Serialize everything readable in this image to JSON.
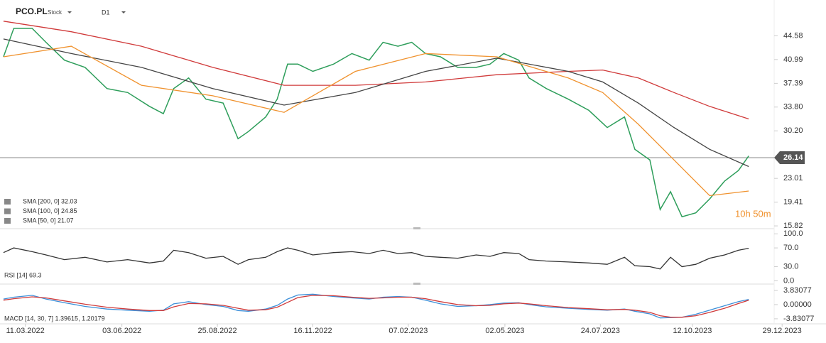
{
  "chart_data": [
    {
      "type": "line",
      "title": "PCO.PL",
      "subtitle": "Stock",
      "timeframe": "D1",
      "countdown": "10h 50m",
      "current_price": 26.14,
      "xlim": [
        "17.02.2022",
        "19.12.2023"
      ],
      "ylim": [
        15.4,
        50.0
      ],
      "yticks": [
        44.58,
        40.99,
        37.39,
        {
          "value": 33.8,
          "label": "33.80"
        },
        {
          "value": 30.2,
          "label": "30.20"
        },
        23.01,
        19.41,
        15.82
      ],
      "series": [
        {
          "color": "#2e9e5b",
          "x": [
            "20.02.2022",
            "01.03.2022",
            "17.03.2022",
            "29.03.2022",
            "14.04.2022",
            "02.05.2022",
            "21.05.2022",
            "08.06.2022",
            "27.06.2022",
            "09.07.2022",
            "18.07.2022",
            "31.07.2022",
            "15.08.2022",
            "30.08.2022",
            "12.09.2022",
            "21.09.2022",
            "06.10.2022",
            "16.10.2022",
            "25.10.2022",
            "03.11.2022",
            "16.11.2022",
            "04.12.2022",
            "20.12.2022",
            "04.01.2023",
            "16.01.2023",
            "29.01.2023",
            "10.02.2023",
            "22.02.2023",
            "07.03.2023",
            "22.03.2023",
            "07.04.2023",
            "19.04.2023",
            "01.05.2023",
            "14.05.2023",
            "23.05.2023",
            "07.06.2023",
            "26.06.2023",
            "14.07.2023",
            "30.07.2023",
            "14.08.2023",
            "23.08.2023",
            "05.09.2023",
            "14.09.2023",
            "23.09.2023",
            "03.10.2023",
            "15.10.2023",
            "27.10.2023",
            "09.11.2023",
            "21.11.2023",
            "30.11.2023"
          ],
          "values": [
            41.4,
            45.7,
            45.7,
            43.6,
            40.9,
            39.8,
            36.6,
            36.0,
            33.9,
            32.8,
            36.6,
            38.2,
            35.0,
            34.4,
            29.0,
            30.1,
            32.3,
            35.0,
            40.3,
            40.3,
            39.2,
            40.3,
            41.9,
            40.9,
            43.6,
            43.0,
            43.6,
            41.9,
            41.4,
            39.8,
            39.8,
            40.3,
            41.9,
            40.9,
            38.2,
            36.6,
            35.0,
            33.3,
            30.7,
            32.3,
            27.4,
            25.8,
            18.3,
            21.0,
            17.2,
            17.8,
            19.9,
            22.6,
            24.2,
            26.4
          ]
        },
        {
          "name": "SMA [200, 0] 32.03",
          "color": "#d03a3a",
          "x": [
            "20.02.2022",
            "20.04.2022",
            "20.06.2022",
            "21.08.2022",
            "22.10.2022",
            "23.12.2022",
            "22.02.2023",
            "25.04.2023",
            "26.06.2023",
            "26.07.2023",
            "26.08.2023",
            "26.09.2023",
            "27.10.2023",
            "30.11.2023"
          ],
          "values": [
            46.8,
            45.2,
            43.0,
            39.8,
            37.1,
            37.1,
            37.6,
            38.7,
            39.2,
            39.4,
            38.2,
            36.0,
            33.9,
            32.0
          ]
        },
        {
          "name": "SMA [100, 0] 24.85",
          "color": "#444444",
          "x": [
            "20.02.2022",
            "20.04.2022",
            "20.06.2022",
            "21.08.2022",
            "22.10.2022",
            "23.12.2022",
            "22.02.2023",
            "25.04.2023",
            "26.06.2023",
            "26.07.2023",
            "26.08.2023",
            "26.09.2023",
            "27.10.2023",
            "30.11.2023"
          ],
          "values": [
            44.1,
            41.9,
            39.8,
            36.6,
            34.1,
            36.0,
            39.2,
            41.2,
            39.2,
            37.6,
            34.4,
            30.7,
            27.4,
            24.8
          ]
        },
        {
          "name": "SMA [50, 0] 21.07",
          "color": "#f0922e",
          "x": [
            "20.02.2022",
            "20.04.2022",
            "20.06.2022",
            "21.08.2022",
            "22.10.2022",
            "23.12.2022",
            "22.02.2023",
            "25.04.2023",
            "26.06.2023",
            "26.07.2023",
            "26.08.2023",
            "26.09.2023",
            "27.10.2023",
            "30.11.2023"
          ],
          "values": [
            41.4,
            43.0,
            37.1,
            35.5,
            33.0,
            39.2,
            41.9,
            41.4,
            38.2,
            36.0,
            31.2,
            25.8,
            20.4,
            21.1
          ]
        }
      ]
    },
    {
      "type": "line",
      "title": "RSI [14] 69.3",
      "xlim": [
        "17.02.2022",
        "19.12.2023"
      ],
      "ylim": [
        -7,
        111
      ],
      "yticks": [
        {
          "value": 100,
          "label": "100.0"
        },
        {
          "value": 70,
          "label": "70.0"
        },
        {
          "value": 30,
          "label": "30.0"
        },
        {
          "value": 0,
          "label": "0.0"
        }
      ],
      "series": [
        {
          "color": "#333333",
          "x": [
            "20.02.2022",
            "01.03.2022",
            "17.03.2022",
            "29.03.2022",
            "14.04.2022",
            "02.05.2022",
            "21.05.2022",
            "08.06.2022",
            "27.06.2022",
            "09.07.2022",
            "18.07.2022",
            "31.07.2022",
            "15.08.2022",
            "30.08.2022",
            "12.09.2022",
            "21.09.2022",
            "06.10.2022",
            "16.10.2022",
            "25.10.2022",
            "03.11.2022",
            "16.11.2022",
            "04.12.2022",
            "20.12.2022",
            "04.01.2023",
            "16.01.2023",
            "29.01.2023",
            "10.02.2023",
            "22.02.2023",
            "07.03.2023",
            "22.03.2023",
            "07.04.2023",
            "19.04.2023",
            "01.05.2023",
            "14.05.2023",
            "23.05.2023",
            "07.06.2023",
            "26.06.2023",
            "14.07.2023",
            "30.07.2023",
            "14.08.2023",
            "23.08.2023",
            "05.09.2023",
            "14.09.2023",
            "23.09.2023",
            "03.10.2023",
            "15.10.2023",
            "27.10.2023",
            "09.11.2023",
            "21.11.2023",
            "30.11.2023"
          ],
          "values": [
            60,
            70,
            62,
            55,
            45,
            50,
            40,
            45,
            38,
            42,
            65,
            60,
            48,
            52,
            35,
            45,
            50,
            62,
            70,
            65,
            55,
            60,
            62,
            58,
            65,
            58,
            60,
            52,
            50,
            48,
            55,
            52,
            60,
            58,
            45,
            42,
            40,
            38,
            35,
            50,
            32,
            30,
            25,
            50,
            30,
            35,
            48,
            55,
            65,
            69.3
          ]
        }
      ]
    },
    {
      "type": "line",
      "title": "MACD [14, 30, 7] 1.39615, 1.20179",
      "xlim": [
        "17.02.2022",
        "19.12.2023"
      ],
      "ylim": [
        -5.0,
        5.55
      ],
      "yticks": [
        {
          "value": 3.83077,
          "label": "3.83077"
        },
        {
          "value": 0,
          "label": "0.00000"
        },
        {
          "value": -3.83077,
          "label": "-3.83077"
        }
      ],
      "xticks": [
        "11.03.2022",
        "03.06.2022",
        "25.08.2022",
        "16.11.2022",
        "07.02.2023",
        "02.05.2023",
        "24.07.2023",
        "12.10.2023",
        "29.12.2023"
      ],
      "series": [
        {
          "color": "#3b8fd9",
          "x": [
            "20.02.2022",
            "01.03.2022",
            "17.03.2022",
            "29.03.2022",
            "14.04.2022",
            "02.05.2022",
            "21.05.2022",
            "08.06.2022",
            "27.06.2022",
            "09.07.2022",
            "18.07.2022",
            "31.07.2022",
            "15.08.2022",
            "30.08.2022",
            "12.09.2022",
            "21.09.2022",
            "06.10.2022",
            "16.10.2022",
            "25.10.2022",
            "03.11.2022",
            "16.11.2022",
            "04.12.2022",
            "20.12.2022",
            "04.01.2023",
            "16.01.2023",
            "29.01.2023",
            "10.02.2023",
            "22.02.2023",
            "07.03.2023",
            "22.03.2023",
            "07.04.2023",
            "19.04.2023",
            "01.05.2023",
            "14.05.2023",
            "23.05.2023",
            "07.06.2023",
            "26.06.2023",
            "14.07.2023",
            "30.07.2023",
            "14.08.2023",
            "23.08.2023",
            "05.09.2023",
            "14.09.2023",
            "23.09.2023",
            "03.10.2023",
            "15.10.2023",
            "27.10.2023",
            "09.11.2023",
            "21.11.2023",
            "30.11.2023"
          ],
          "values": [
            1.5,
            2.0,
            2.5,
            1.5,
            0.5,
            -0.5,
            -1.2,
            -1.5,
            -1.8,
            -1.5,
            0.2,
            0.8,
            0.0,
            -0.5,
            -1.6,
            -1.8,
            -1.2,
            -0.2,
            1.5,
            2.6,
            2.8,
            2.2,
            1.8,
            1.5,
            2.0,
            2.2,
            2.0,
            1.2,
            0.2,
            -0.5,
            -0.3,
            0.0,
            0.4,
            0.5,
            0.0,
            -0.6,
            -1.0,
            -1.3,
            -1.5,
            -1.2,
            -1.8,
            -2.5,
            -3.6,
            -3.5,
            -3.4,
            -2.6,
            -1.5,
            -0.3,
            0.8,
            1.4
          ]
        },
        {
          "color": "#d03a3a",
          "x": [
            "20.02.2022",
            "01.03.2022",
            "17.03.2022",
            "29.03.2022",
            "14.04.2022",
            "02.05.2022",
            "21.05.2022",
            "08.06.2022",
            "27.06.2022",
            "09.07.2022",
            "18.07.2022",
            "31.07.2022",
            "15.08.2022",
            "30.08.2022",
            "12.09.2022",
            "21.09.2022",
            "06.10.2022",
            "16.10.2022",
            "25.10.2022",
            "03.11.2022",
            "16.11.2022",
            "04.12.2022",
            "20.12.2022",
            "04.01.2023",
            "16.01.2023",
            "29.01.2023",
            "10.02.2023",
            "22.02.2023",
            "07.03.2023",
            "22.03.2023",
            "07.04.2023",
            "19.04.2023",
            "01.05.2023",
            "14.05.2023",
            "23.05.2023",
            "07.06.2023",
            "26.06.2023",
            "14.07.2023",
            "30.07.2023",
            "14.08.2023",
            "23.08.2023",
            "05.09.2023",
            "14.09.2023",
            "23.09.2023",
            "03.10.2023",
            "15.10.2023",
            "27.10.2023",
            "09.11.2023",
            "21.11.2023",
            "30.11.2023"
          ],
          "values": [
            1.2,
            1.6,
            2.1,
            1.8,
            1.0,
            0.1,
            -0.7,
            -1.2,
            -1.6,
            -1.6,
            -0.6,
            0.3,
            0.2,
            -0.2,
            -1.0,
            -1.5,
            -1.4,
            -0.7,
            0.6,
            1.9,
            2.5,
            2.4,
            2.0,
            1.7,
            1.8,
            2.0,
            2.0,
            1.6,
            0.8,
            0.0,
            -0.3,
            -0.2,
            0.2,
            0.4,
            0.2,
            -0.3,
            -0.8,
            -1.1,
            -1.4,
            -1.3,
            -1.5,
            -2.1,
            -3.0,
            -3.4,
            -3.4,
            -3.0,
            -2.1,
            -1.0,
            0.3,
            1.2
          ]
        }
      ]
    }
  ]
}
